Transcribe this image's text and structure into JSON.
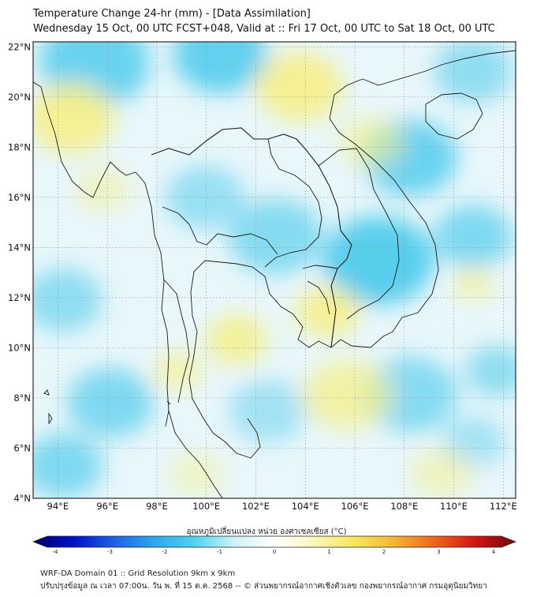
{
  "title": {
    "line1": "Temperature Change 24-hr (mm) - [Data Assimilation]",
    "line2": "Wednesday 15 Oct, 00 UTC FCST+048, Valid at :: Fri 17 Oct, 00 UTC to Sat 18 Oct, 00 UTC"
  },
  "map": {
    "lat_labels": [
      "22°N",
      "20°N",
      "18°N",
      "16°N",
      "14°N",
      "12°N",
      "10°N",
      "8°N",
      "6°N",
      "4°N"
    ],
    "lon_labels": [
      "94°E",
      "96°E",
      "98°E",
      "100°E",
      "102°E",
      "104°E",
      "106°E",
      "108°E",
      "110°E",
      "112°E"
    ],
    "lat_range": [
      4,
      22.2
    ],
    "lon_range": [
      93,
      112.5
    ],
    "gridlines": true,
    "colors": {
      "cold": "#35c4ea",
      "neutral": "#e8f7fb",
      "warm": "#f6f08a",
      "coast": "#1a1a1a"
    }
  },
  "colorbar": {
    "label": "อุณหภูมิเปลี่ยนแปลง หน่วย องศาเซลเซียส (°C)",
    "ticks": [
      "-4",
      "-3",
      "-2",
      "-1",
      "0",
      "1",
      "2",
      "3",
      "4"
    ],
    "stops": [
      "#00006e",
      "#0010c8",
      "#1f5ee8",
      "#2ca8ee",
      "#4fd2f0",
      "#d0f2f8",
      "#ffffff",
      "#fdf6b8",
      "#f6e65a",
      "#f5b431",
      "#f0641c",
      "#d41414",
      "#6e0a0a"
    ]
  },
  "footer": {
    "line1": "WRF-DA Domain 01 :: Grid Resolution 9km x 9km",
    "line2": "ปรับปรุงข้อมูล ณ เวลา 07:00น. วัน พ. ที่ 15 ต.ค. 2568 -- © ส่วนพยากรณ์อากาศเชิงตัวเลข กองพยากรณ์อากาศ กรมอุตุนิยมวิทยา"
  }
}
